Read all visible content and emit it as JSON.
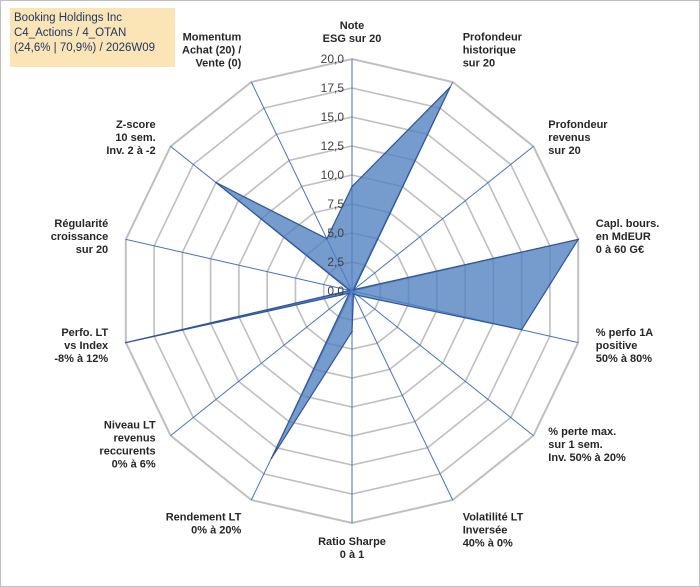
{
  "header": {
    "title_line1": "Booking Holdings Inc",
    "title_line2": "C4_Actions / 4_OTAN",
    "title_line3": "(24,6% | 70,9%) / 2026W09"
  },
  "chart_data": {
    "type": "radar",
    "title": "",
    "rmin": 0,
    "rmax": 20,
    "tick_step": 2.5,
    "tick_labels": [
      "0,0",
      "2,5",
      "5,0",
      "7,5",
      "10,0",
      "12,5",
      "15,0",
      "17,5",
      "20,0"
    ],
    "grid": true,
    "colors": {
      "fill": "#4f7fbf",
      "stroke": "#2f5597",
      "grid": "#bfbfbf",
      "axis": "#4472c4"
    },
    "axes": [
      {
        "label": [
          "Note",
          "ESG sur 20"
        ]
      },
      {
        "label": [
          "Profondeur",
          "historique",
          "sur 20"
        ]
      },
      {
        "label": [
          "Profondeur",
          "revenus",
          "sur 20"
        ]
      },
      {
        "label": [
          "Capl. bours.",
          "en MdEUR",
          "0 à 60 G€"
        ]
      },
      {
        "label": [
          "% perfo 1A",
          "positive",
          "50% à 80%"
        ]
      },
      {
        "label": [
          "% perte max.",
          "sur 1 sem.",
          "Inv. 50% à 20%"
        ]
      },
      {
        "label": [
          "Volatilité LT",
          "Inversée",
          "40% à 0%"
        ]
      },
      {
        "label": [
          "Ratio Sharpe",
          "0 à 1"
        ]
      },
      {
        "label": [
          "Rendement LT",
          "0% à 20%"
        ]
      },
      {
        "label": [
          "Niveau LT",
          "revenus",
          "reccurents",
          "0% à 6%"
        ]
      },
      {
        "label": [
          "Perfo. LT",
          "vs Index",
          "-8% à 12%"
        ]
      },
      {
        "label": [
          "Régularité",
          "croissance",
          "sur 20"
        ]
      },
      {
        "label": [
          "Z-score",
          "10 sem.",
          "Inv. 2 à -2"
        ]
      },
      {
        "label": [
          "Momentum",
          "Achat (20) /",
          "Vente (0)"
        ]
      }
    ],
    "series": [
      {
        "values": [
          9,
          19.5,
          0.2,
          20,
          15,
          0.6,
          0.3,
          3.5,
          16,
          0.3,
          20,
          0.2,
          15,
          5
        ]
      }
    ]
  }
}
